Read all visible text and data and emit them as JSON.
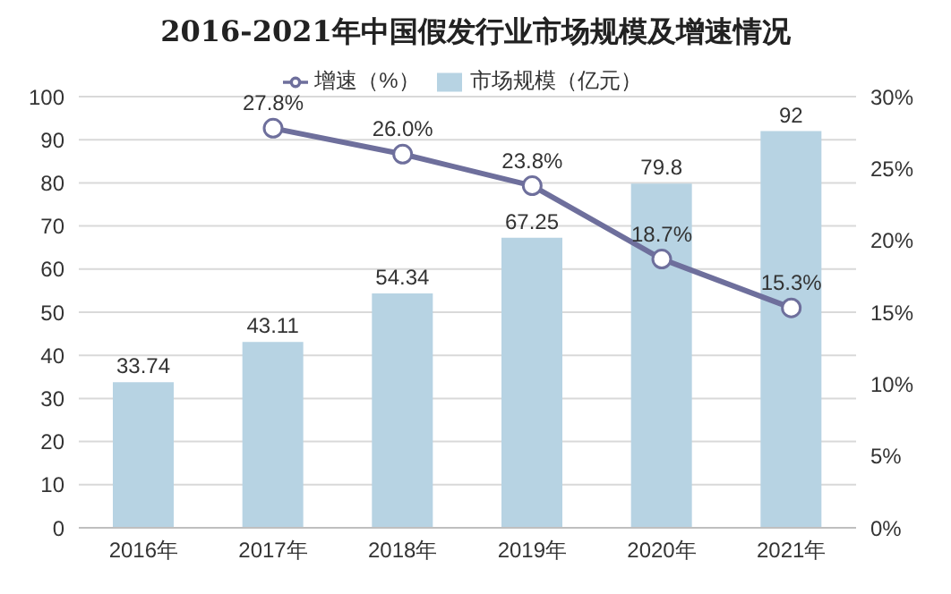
{
  "chart_data": {
    "type": "bar",
    "title": "2016-2021年中国假发行业市场规模及增速情况",
    "categories": [
      "2016年",
      "2017年",
      "2018年",
      "2019年",
      "2020年",
      "2021年"
    ],
    "series": [
      {
        "name": "市场规模（亿元）",
        "color": "#b7d3e3",
        "values": [
          33.74,
          43.11,
          54.34,
          67.25,
          79.8,
          92
        ],
        "value_labels": [
          "33.74",
          "43.11",
          "54.34",
          "67.25",
          "79.8",
          "92"
        ]
      },
      {
        "name": "增速（%）",
        "type": "line",
        "axis": "y2",
        "color": "#6e6f9c",
        "marker": "circle",
        "values": [
          null,
          27.8,
          26.0,
          23.8,
          18.7,
          15.3
        ],
        "value_labels": [
          null,
          "27.8%",
          "26.0%",
          "23.8%",
          "18.7%",
          "15.3%"
        ]
      }
    ],
    "ylim": [
      0,
      100
    ],
    "yticks": [
      0,
      10,
      20,
      30,
      40,
      50,
      60,
      70,
      80,
      90,
      100
    ],
    "y2lim": [
      0,
      30
    ],
    "y2ticks": [
      {
        "value": 0,
        "label": "0%"
      },
      {
        "value": 5,
        "label": "5%"
      },
      {
        "value": 10,
        "label": "10%"
      },
      {
        "value": 15,
        "label": "15%"
      },
      {
        "value": 20,
        "label": "20%"
      },
      {
        "value": 25,
        "label": "25%"
      },
      {
        "value": 30,
        "label": "30%"
      }
    ],
    "grid": "y",
    "legend": "top"
  }
}
